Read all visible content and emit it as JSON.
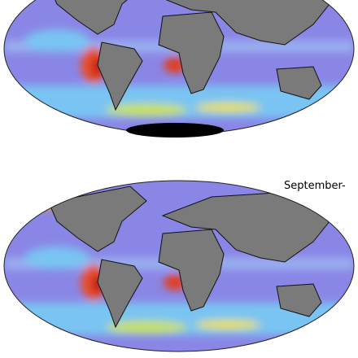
{
  "caption": "September-"
}
